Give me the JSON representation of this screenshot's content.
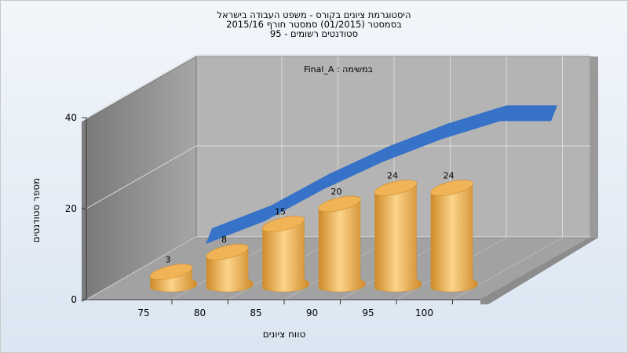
{
  "colors": {
    "bar": "#f0b457",
    "bar_light": "#fbd48c",
    "bar_dark": "#d08a28",
    "trend": "#2f6fc9",
    "back_wall": "#b4b4b4",
    "side_wall": "#8c8c8c",
    "floor": "#9e9e9e"
  },
  "chart_data": {
    "type": "bar",
    "title_lines": [
      "היסטוגרמת ציונים בקורס - משפט העבודה בישראל",
      "בסמסטר  (01/2015)  סמסטר חורף 2015/16",
      "סטודנטים רשומים - 95"
    ],
    "series_label": "Final_A : במשימה",
    "categories": [
      "75",
      "80",
      "85",
      "90",
      "95",
      "100"
    ],
    "values": [
      3,
      8,
      15,
      20,
      24,
      24
    ],
    "data_labels": [
      "3",
      "8",
      "15",
      "20",
      "24",
      "24"
    ],
    "trend_values": [
      5,
      10,
      17,
      23,
      28,
      32
    ],
    "y_ticks": [
      "0",
      "20",
      "40"
    ],
    "ylim": [
      0,
      40
    ],
    "xlabel": "טווח ציונים",
    "ylabel": "מספר סטודנטים",
    "grid": true,
    "three_d": true
  }
}
